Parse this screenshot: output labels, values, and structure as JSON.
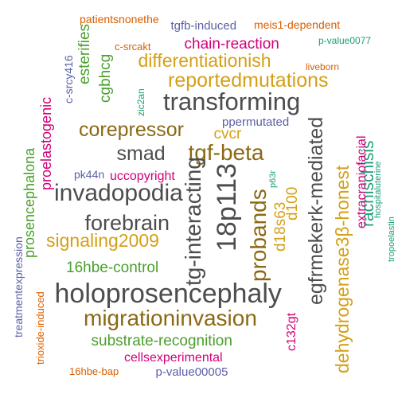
{
  "palette": {
    "gray": "#4d4d4d",
    "brown": "#8b6914",
    "gold": "#d4a017",
    "magenta": "#d1007a",
    "green": "#4aa02c",
    "teal": "#1b9e77",
    "purple": "#6a5acd",
    "orange": "#d95f02",
    "blue": "#5b5fa8"
  },
  "words": [
    {
      "text": "holoprosencephaly",
      "color": "#4d4d4d"
    },
    {
      "text": "18p113",
      "color": "#4d4d4d"
    },
    {
      "text": "tg-interacting",
      "color": "#4d4d4d"
    },
    {
      "text": "transforming",
      "color": "#4d4d4d"
    },
    {
      "text": "invadopodia",
      "color": "#4d4d4d"
    },
    {
      "text": "migrationinvasion",
      "color": "#8b6914"
    },
    {
      "text": "tgf-beta",
      "color": "#8b6914"
    },
    {
      "text": "forebrain",
      "color": "#4d4d4d"
    },
    {
      "text": "smad",
      "color": "#4d4d4d"
    },
    {
      "text": "corepressor",
      "color": "#8b6914"
    },
    {
      "text": "reportedmutations",
      "color": "#d4a017"
    },
    {
      "text": "signaling2009",
      "color": "#d4a017"
    },
    {
      "text": "probands",
      "color": "#8b6914"
    },
    {
      "text": "egfrmekerk-mediated",
      "color": "#4d4d4d"
    },
    {
      "text": "dehydrogenase3β-honest",
      "color": "#d4a017"
    },
    {
      "text": "differentiationish",
      "color": "#d4a017"
    },
    {
      "text": "substrate-recognition",
      "color": "#4aa02c"
    },
    {
      "text": "rachischisis",
      "color": "#1b9e77"
    },
    {
      "text": "d18s63",
      "color": "#d4a017"
    },
    {
      "text": "d100",
      "color": "#d4a017"
    },
    {
      "text": "16hbe-control",
      "color": "#4aa02c"
    },
    {
      "text": "prosencephalona",
      "color": "#4aa02c"
    },
    {
      "text": "chain-reaction",
      "color": "#d1007a"
    },
    {
      "text": "cvcr",
      "color": "#d4a017"
    },
    {
      "text": "cellsexperimental",
      "color": "#d1007a"
    },
    {
      "text": "esterifies",
      "color": "#4aa02c"
    },
    {
      "text": "cgbhcg",
      "color": "#4aa02c"
    },
    {
      "text": "proelastogenic",
      "color": "#d1007a"
    },
    {
      "text": "extracraniofacial",
      "color": "#d1007a"
    },
    {
      "text": "uccopyright",
      "color": "#d1007a"
    },
    {
      "text": "c132gt",
      "color": "#d1007a"
    },
    {
      "text": "ppermutated",
      "color": "#5b5fa8"
    },
    {
      "text": "tgfb-induced",
      "color": "#5b5fa8"
    },
    {
      "text": "p-value00005",
      "color": "#5b5fa8"
    },
    {
      "text": "pk44n",
      "color": "#5b5fa8"
    },
    {
      "text": "c-srcy416",
      "color": "#5b5fa8"
    },
    {
      "text": "treatmentexpression",
      "color": "#5b5fa8"
    },
    {
      "text": "patientsnonethe",
      "color": "#d95f02"
    },
    {
      "text": "meis1-dependent",
      "color": "#d95f02"
    },
    {
      "text": "c-srcakt",
      "color": "#d95f02"
    },
    {
      "text": "16hbe-bap",
      "color": "#d95f02"
    },
    {
      "text": "trioxide-induced",
      "color": "#d95f02"
    },
    {
      "text": "liveborn",
      "color": "#d95f02"
    },
    {
      "text": "p-value0077",
      "color": "#1b9e77"
    },
    {
      "text": "zic2an",
      "color": "#1b9e77"
    },
    {
      "text": "p63r",
      "color": "#1b9e77"
    },
    {
      "text": "hospitaluterine",
      "color": "#1b9e77"
    },
    {
      "text": "tropoelastin",
      "color": "#1b9e77"
    }
  ]
}
